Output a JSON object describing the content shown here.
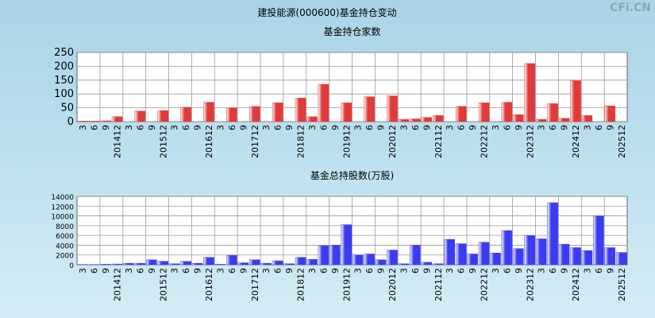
{
  "title": "建投能源(000600)基金持仓变动",
  "watermark": "CFi.CN",
  "chart_data": [
    {
      "type": "bar",
      "title": "基金持仓家数",
      "color": "#e03a3a",
      "categories": [
        "3",
        "6",
        "9",
        "201412",
        "3",
        "6",
        "9",
        "201512",
        "3",
        "6",
        "9",
        "201612",
        "3",
        "6",
        "9",
        "201712",
        "3",
        "6",
        "9",
        "201812",
        "3",
        "6",
        "9",
        "201912",
        "3",
        "6",
        "9",
        "202012",
        "3",
        "6",
        "9",
        "202112",
        "3",
        "6",
        "9",
        "202212",
        "3",
        "6",
        "9",
        "202312",
        "3",
        "6",
        "9",
        "202412",
        "3",
        "6",
        "9",
        "202512"
      ],
      "values": [
        2,
        2,
        3,
        18,
        0,
        38,
        0,
        40,
        0,
        52,
        0,
        70,
        0,
        50,
        0,
        55,
        0,
        68,
        0,
        85,
        18,
        135,
        0,
        68,
        0,
        90,
        0,
        93,
        8,
        10,
        15,
        22,
        0,
        55,
        0,
        68,
        0,
        70,
        25,
        210,
        8,
        65,
        12,
        148,
        22,
        0,
        57,
        0
      ],
      "ylim": [
        0,
        250
      ],
      "yticks": [
        0,
        50,
        100,
        150,
        200,
        250
      ],
      "grid": true
    },
    {
      "type": "bar",
      "title": "基金总持股数(万股)",
      "color": "#3b3bf0",
      "categories": [
        "3",
        "6",
        "9",
        "201412",
        "3",
        "6",
        "9",
        "201512",
        "3",
        "6",
        "9",
        "201612",
        "3",
        "6",
        "9",
        "201712",
        "3",
        "6",
        "9",
        "201812",
        "3",
        "6",
        "9",
        "201912",
        "3",
        "6",
        "9",
        "202012",
        "3",
        "6",
        "9",
        "202112",
        "3",
        "6",
        "9",
        "202212",
        "3",
        "6",
        "9",
        "202312",
        "3",
        "6",
        "9",
        "202412",
        "3",
        "6",
        "9",
        "202512"
      ],
      "values": [
        50,
        50,
        100,
        150,
        300,
        300,
        1000,
        700,
        200,
        700,
        300,
        1500,
        100,
        1900,
        400,
        1000,
        300,
        800,
        200,
        1500,
        1100,
        3900,
        4000,
        8200,
        2000,
        2200,
        1000,
        3000,
        200,
        4000,
        500,
        200,
        5200,
        4300,
        2200,
        4600,
        2400,
        7000,
        3300,
        6000,
        5300,
        12700,
        4200,
        3500,
        2900,
        10000,
        3500,
        2500
      ],
      "ylim": [
        0,
        14000
      ],
      "yticks": [
        0,
        2000,
        4000,
        6000,
        8000,
        10000,
        12000,
        14000
      ],
      "grid": true
    }
  ]
}
